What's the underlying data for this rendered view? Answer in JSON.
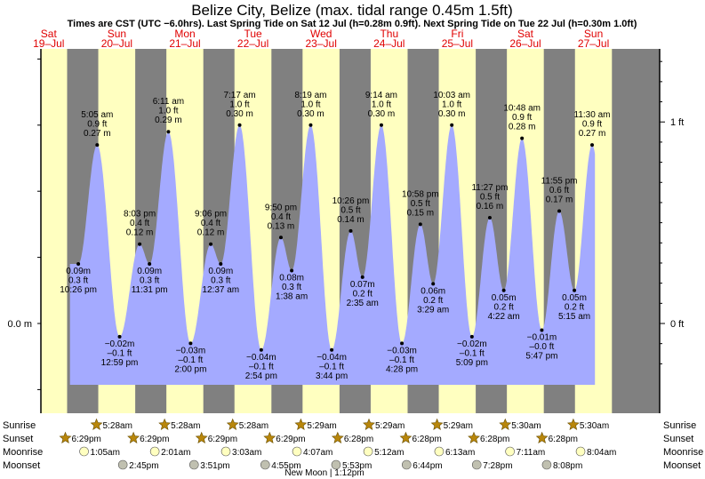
{
  "title": "Belize City, Belize (max. tidal range 0.45m 1.5ft)",
  "subtitle": "Times are CST (UTC −6.0hrs). Last Spring Tide on Sat 12 Jul (h=0.28m 0.9ft). Next Spring Tide on Tue 22 Jul (h=0.30m 1.0ft)",
  "days": [
    {
      "dow": "Sat",
      "date": "19–Jul"
    },
    {
      "dow": "Sun",
      "date": "20–Jul"
    },
    {
      "dow": "Mon",
      "date": "21–Jul"
    },
    {
      "dow": "Tue",
      "date": "22–Jul"
    },
    {
      "dow": "Wed",
      "date": "23–Jul"
    },
    {
      "dow": "Thu",
      "date": "24–Jul"
    },
    {
      "dow": "Fri",
      "date": "25–Jul"
    },
    {
      "dow": "Sat",
      "date": "26–Jul"
    },
    {
      "dow": "Sun",
      "date": "27–Jul"
    }
  ],
  "colors": {
    "day": "#ffffc0",
    "night": "#808080",
    "water": "#a4aaff",
    "sun": "#b8860b",
    "moonrise": "#ffffc0",
    "moonset": "#c0c0b0"
  },
  "axes": {
    "left_zero": "0.0 m",
    "right_zero": "0 ft",
    "right_one": "1 ft"
  },
  "chart_data": {
    "type": "area",
    "title": "Belize City, Belize (max. tidal range 0.45m 1.5ft)",
    "y_unit": "m",
    "ylim_m": [
      -0.06,
      0.4
    ],
    "extremes": [
      {
        "kind": "low",
        "h_m": 0.09,
        "h_ft": "0.3 ft",
        "time": "10:26 pm",
        "day": "Sat 19-Jul",
        "t": 22.43
      },
      {
        "kind": "high",
        "h_m": 0.27,
        "h_ft": "0.9 ft",
        "time": "5:05 am",
        "day": "Sun 20-Jul",
        "t": 29.08
      },
      {
        "kind": "low",
        "h_m": -0.02,
        "h_ft": "–0.1 ft",
        "time": "12:59 pm",
        "day": "Sun 20-Jul",
        "t": 36.98
      },
      {
        "kind": "high",
        "h_m": 0.12,
        "h_ft": "0.4 ft",
        "time": "8:03 pm",
        "day": "Sun 20-Jul",
        "t": 44.05
      },
      {
        "kind": "low",
        "h_m": 0.09,
        "h_ft": "0.3 ft",
        "time": "11:31 pm",
        "day": "Sun 20-Jul",
        "t": 47.52
      },
      {
        "kind": "high",
        "h_m": 0.29,
        "h_ft": "1.0 ft",
        "time": "6:11 am",
        "day": "Mon 21-Jul",
        "t": 54.18
      },
      {
        "kind": "low",
        "h_m": -0.03,
        "h_ft": "–0.1 ft",
        "time": "2:00 pm",
        "day": "Mon 21-Jul",
        "t": 62.0
      },
      {
        "kind": "high",
        "h_m": 0.12,
        "h_ft": "0.4 ft",
        "time": "9:06 pm",
        "day": "Mon 21-Jul",
        "t": 69.1
      },
      {
        "kind": "low",
        "h_m": 0.09,
        "h_ft": "0.3 ft",
        "time": "12:37 am",
        "day": "Tue 22-Jul",
        "t": 72.62
      },
      {
        "kind": "high",
        "h_m": 0.3,
        "h_ft": "1.0 ft",
        "time": "7:17 am",
        "day": "Tue 22-Jul",
        "t": 79.28
      },
      {
        "kind": "low",
        "h_m": -0.04,
        "h_ft": "–0.1 ft",
        "time": "2:54 pm",
        "day": "Tue 22-Jul",
        "t": 86.9
      },
      {
        "kind": "high",
        "h_m": 0.13,
        "h_ft": "0.4 ft",
        "time": "9:50 pm",
        "day": "Tue 22-Jul",
        "t": 93.83
      },
      {
        "kind": "low",
        "h_m": 0.08,
        "h_ft": "0.3 ft",
        "time": "1:38 am",
        "day": "Wed 23-Jul",
        "t": 97.63
      },
      {
        "kind": "high",
        "h_m": 0.3,
        "h_ft": "1.0 ft",
        "time": "8:19 am",
        "day": "Wed 23-Jul",
        "t": 104.32
      },
      {
        "kind": "low",
        "h_m": -0.04,
        "h_ft": "–0.1 ft",
        "time": "3:44 pm",
        "day": "Wed 23-Jul",
        "t": 111.73
      },
      {
        "kind": "high",
        "h_m": 0.14,
        "h_ft": "0.5 ft",
        "time": "10:26 pm",
        "day": "Wed 23-Jul",
        "t": 118.43
      },
      {
        "kind": "low",
        "h_m": 0.07,
        "h_ft": "0.2 ft",
        "time": "2:35 am",
        "day": "Thu 24-Jul",
        "t": 122.58
      },
      {
        "kind": "high",
        "h_m": 0.3,
        "h_ft": "1.0 ft",
        "time": "9:14 am",
        "day": "Thu 24-Jul",
        "t": 129.23
      },
      {
        "kind": "low",
        "h_m": -0.03,
        "h_ft": "–0.1 ft",
        "time": "4:28 pm",
        "day": "Thu 24-Jul",
        "t": 136.47
      },
      {
        "kind": "high",
        "h_m": 0.15,
        "h_ft": "0.5 ft",
        "time": "10:58 pm",
        "day": "Thu 24-Jul",
        "t": 142.97
      },
      {
        "kind": "low",
        "h_m": 0.06,
        "h_ft": "0.2 ft",
        "time": "3:29 am",
        "day": "Fri 25-Jul",
        "t": 147.48
      },
      {
        "kind": "high",
        "h_m": 0.3,
        "h_ft": "1.0 ft",
        "time": "10:03 am",
        "day": "Fri 25-Jul",
        "t": 154.05
      },
      {
        "kind": "low",
        "h_m": -0.02,
        "h_ft": "–0.1 ft",
        "time": "5:09 pm",
        "day": "Fri 25-Jul",
        "t": 161.15
      },
      {
        "kind": "high",
        "h_m": 0.16,
        "h_ft": "0.5 ft",
        "time": "11:27 pm",
        "day": "Fri 25-Jul",
        "t": 167.45
      },
      {
        "kind": "low",
        "h_m": 0.05,
        "h_ft": "0.2 ft",
        "time": "4:22 am",
        "day": "Sat 26-Jul",
        "t": 172.37
      },
      {
        "kind": "high",
        "h_m": 0.28,
        "h_ft": "0.9 ft",
        "time": "10:48 am",
        "day": "Sat 26-Jul",
        "t": 178.8
      },
      {
        "kind": "low",
        "h_m": -0.01,
        "h_ft": "–0.0 ft",
        "time": "5:47 pm",
        "day": "Sat 26-Jul",
        "t": 185.78
      },
      {
        "kind": "high",
        "h_m": 0.17,
        "h_ft": "0.6 ft",
        "time": "11:55 pm",
        "day": "Sat 26-Jul",
        "t": 191.92
      },
      {
        "kind": "low",
        "h_m": 0.05,
        "h_ft": "0.2 ft",
        "time": "5:15 am",
        "day": "Sun 27-Jul",
        "t": 197.25
      },
      {
        "kind": "high",
        "h_m": 0.27,
        "h_ft": "0.9 ft",
        "time": "11:30 am",
        "day": "Sun 27-Jul",
        "t": 203.5
      }
    ],
    "sunrise": [
      "5:28am",
      "5:28am",
      "5:28am",
      "5:29am",
      "5:29am",
      "5:29am",
      "5:30am",
      "5:30am"
    ],
    "sunset": [
      "6:29pm",
      "6:29pm",
      "6:29pm",
      "6:29pm",
      "6:28pm",
      "6:28pm",
      "6:28pm",
      "6:28pm"
    ],
    "moonrise": [
      "1:05am",
      "2:01am",
      "3:03am",
      "4:07am",
      "5:12am",
      "6:13am",
      "7:11am",
      "8:04am"
    ],
    "moonset": [
      "2:45pm",
      "3:51pm",
      "4:55pm",
      "5:53pm",
      "6:44pm",
      "7:28pm",
      "8:08pm"
    ],
    "moon_phase_note": "New Moon | 1:12pm",
    "row_labels": [
      "Sunrise",
      "Sunset",
      "Moonrise",
      "Moonset"
    ]
  }
}
